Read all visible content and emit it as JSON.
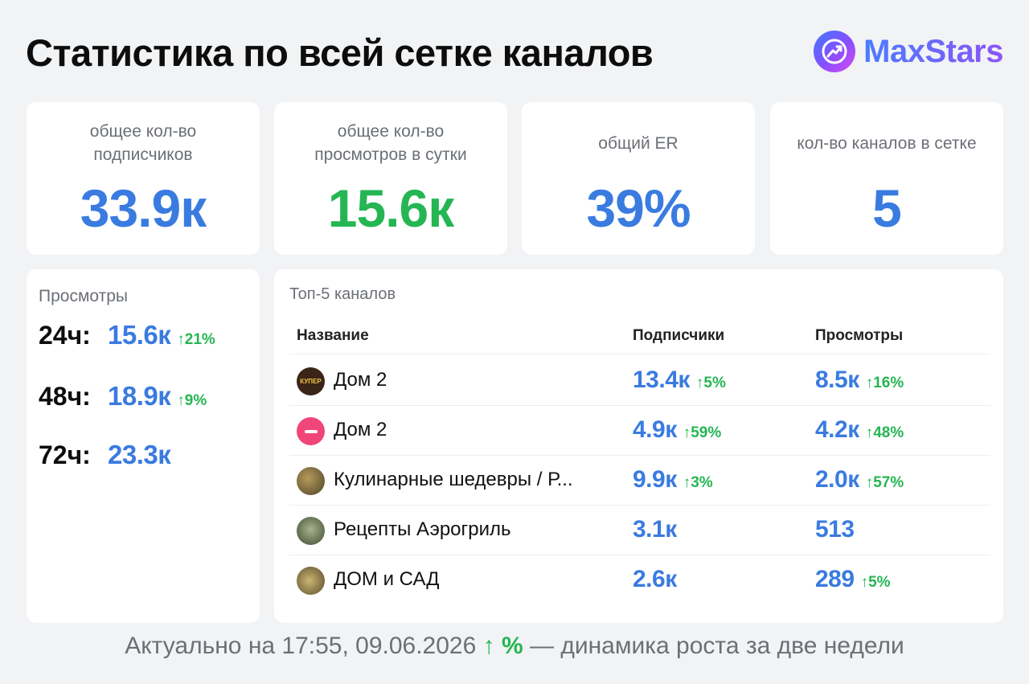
{
  "header": {
    "title": "Статистика по всей сетке каналов",
    "brand_name": "MaxStars",
    "brand_icon": "chart-arrow-icon"
  },
  "stats": [
    {
      "label": "общее кол-во подписчиков",
      "value": "33.9к",
      "color": "#3a7be0"
    },
    {
      "label": "общее кол-во просмотров в сутки",
      "value": "15.6к",
      "color": "#25b653"
    },
    {
      "label": "общий ER",
      "value": "39%",
      "color": "#3a7be0"
    },
    {
      "label": "кол-во каналов в сетке",
      "value": "5",
      "color": "#3a7be0"
    }
  ],
  "views": {
    "title": "Просмотры",
    "rows": [
      {
        "period": "24ч:",
        "value": "15.6к",
        "delta": "↑21%"
      },
      {
        "period": "48ч:",
        "value": "18.9к",
        "delta": "↑9%"
      },
      {
        "period": "72ч:",
        "value": "23.3к",
        "delta": ""
      }
    ]
  },
  "top_channels": {
    "title": "Топ-5 каналов",
    "columns": [
      "Название",
      "Подписчики",
      "Просмотры"
    ],
    "rows": [
      {
        "name": "Дом 2",
        "subscribers": "13.4к",
        "subscribers_delta": "↑5%",
        "views": "8.5к",
        "views_delta": "↑16%",
        "avatar_label": "КУПЕР",
        "avatar_color": "#3b2418"
      },
      {
        "name": "Дом 2",
        "subscribers": "4.9к",
        "subscribers_delta": "↑59%",
        "views": "4.2к",
        "views_delta": "↑48%",
        "avatar_label": "",
        "avatar_color": "#f0467a"
      },
      {
        "name": "Кулинарные шедевры / Р...",
        "subscribers": "9.9к",
        "subscribers_delta": "↑3%",
        "views": "2.0к",
        "views_delta": "↑57%",
        "avatar_label": "",
        "avatar_color": "#7a6a3a"
      },
      {
        "name": "Рецепты Аэрогриль",
        "subscribers": "3.1к",
        "subscribers_delta": "",
        "views": "513",
        "views_delta": "",
        "avatar_label": "",
        "avatar_color": "#5d6b4e"
      },
      {
        "name": "ДОМ и САД",
        "subscribers": "2.6к",
        "subscribers_delta": "",
        "views": "289",
        "views_delta": "↑5%",
        "avatar_label": "",
        "avatar_color": "#8a7a45"
      }
    ]
  },
  "footer": {
    "prefix": "Актуально на 17:55, 09.06.2026",
    "legend": "↑ %",
    "suffix": "— динамика роста за две недели"
  }
}
